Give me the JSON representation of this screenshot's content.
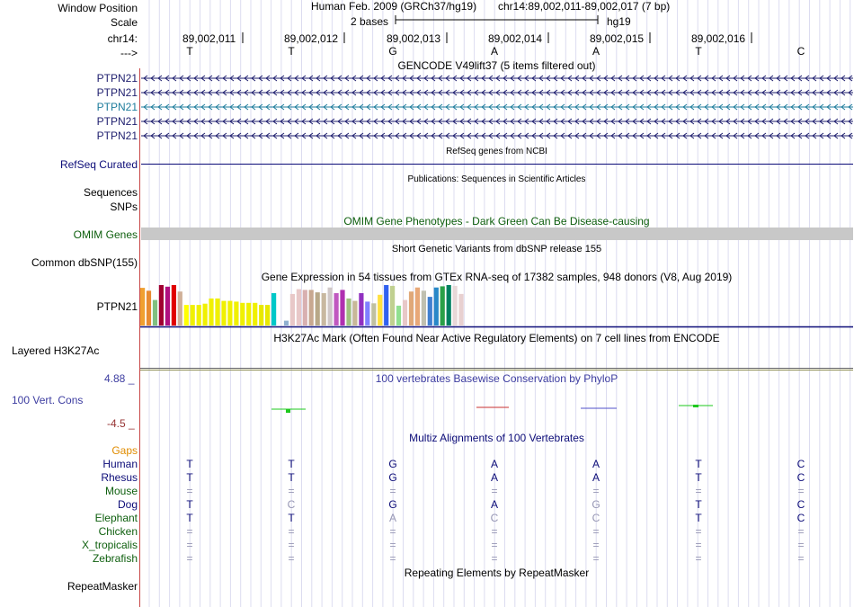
{
  "header": {
    "window_position_label": "Window Position",
    "scale_label": "Scale",
    "chrom_label": "chr14:",
    "arrow_label": "--->",
    "assembly": "Human Feb. 2009 (GRCh37/hg19)",
    "position": "chr14:89,002,011-89,002,017 (7 bp)",
    "scale_text": "2 bases",
    "scale_db": "hg19",
    "positions": [
      "89,002,011",
      "89,002,012",
      "89,002,013",
      "89,002,014",
      "89,002,015",
      "89,002,016"
    ],
    "bases": [
      "T",
      "T",
      "G",
      "A",
      "A",
      "T",
      "C"
    ]
  },
  "gencode": {
    "title": "GENCODE V49lift37 (5 items filtered out)",
    "items": [
      {
        "label": "PTPN21",
        "color": "#1e1e6e"
      },
      {
        "label": "PTPN21",
        "color": "#1e1e6e"
      },
      {
        "label": "PTPN21",
        "color": "#1e7c9c"
      },
      {
        "label": "PTPN21",
        "color": "#1e1e6e"
      },
      {
        "label": "PTPN21",
        "color": "#1e1e6e"
      }
    ]
  },
  "refseq": {
    "title": "RefSeq genes from NCBI",
    "label": "RefSeq Curated",
    "color": "#0c0c78"
  },
  "publications": {
    "title": "Publications: Sequences in Scientific Articles",
    "sequences_label": "Sequences",
    "snps_label": "SNPs"
  },
  "omim": {
    "title": "OMIM Gene Phenotypes - Dark Green Can Be Disease-causing",
    "label": "OMIM Genes",
    "color": "#0e5f0e"
  },
  "dbsnp": {
    "title": "Short Genetic Variants from dbSNP release 155",
    "label": "Common dbSNP(155)"
  },
  "gtex": {
    "title": "Gene Expression in 54 tissues from GTEx RNA-seq of 17382 samples, 948 donors (V8, Aug 2019)",
    "label": "PTPN21",
    "levels": [
      0.93,
      0.86,
      0.63,
      1.0,
      0.96,
      1.0,
      0.84,
      0.51,
      0.51,
      0.51,
      0.54,
      0.67,
      0.67,
      0.61,
      0.61,
      0.59,
      0.56,
      0.56,
      0.56,
      0.51,
      0.51,
      0.8,
      0.0,
      0.12,
      0.78,
      0.9,
      0.88,
      0.88,
      0.82,
      0.8,
      0.94,
      0.8,
      0.88,
      0.67,
      0.61,
      0.8,
      0.59,
      0.55,
      0.76,
      1.0,
      0.98,
      0.49,
      0.63,
      0.84,
      0.94,
      0.86,
      0.71,
      0.94,
      0.97,
      1.0,
      0.98,
      0.78,
      0.0,
      0.0
    ],
    "colors": [
      "#f0a030",
      "#e88a30",
      "#80c080",
      "#a00030",
      "#b01080",
      "#e00000",
      "#d0b098",
      "#ffff00",
      "#f0f000",
      "#f0f000",
      "#f0f000",
      "#f0f000",
      "#f0f000",
      "#f0f000",
      "#f0f000",
      "#f0f000",
      "#f0f000",
      "#f0f000",
      "#f0f000",
      "#e8e800",
      "#e8e800",
      "#00c8c8",
      "#c0c0c0",
      "#90b0d0",
      "#e8c8c8",
      "#e8c8c8",
      "#d8b0b0",
      "#c8a890",
      "#b8a888",
      "#c8b8a0",
      "#d0c8c8",
      "#c058c0",
      "#b030b0",
      "#a0c080",
      "#c8b898",
      "#9030c0",
      "#8080ff",
      "#c0c0a0",
      "#ffe040",
      "#3060f0",
      "#c0d090",
      "#90e090",
      "#e8c8c8",
      "#e0a878",
      "#e8a878",
      "#c0c0b0",
      "#4080d0",
      "#2888c8",
      "#2aa048",
      "#008060",
      "#e8d8d8",
      "#e8d0d0",
      "#ffffff",
      "#ffffff"
    ]
  },
  "h3k27ac": {
    "title": "H3K27Ac Mark (Often Found Near Active Regulatory Elements) on 7 cell lines from ENCODE",
    "label": "Layered H3K27Ac"
  },
  "phylop": {
    "title": "100 vertebrates Basewise Conservation by PhyloP",
    "label": "100 Vert. Cons",
    "max_label": "4.88 _",
    "min_label": "-4.5 _",
    "title_color": "#3c3ca0",
    "pos_color": "#1ec81e",
    "neg_color": "#c83232"
  },
  "multiz": {
    "title": "Multiz Alignments of 100 Vertebrates",
    "gaps_label": "Gaps",
    "species": [
      {
        "name": "Human",
        "color": "#0c0c78",
        "bases": [
          "T",
          "T",
          "G",
          "A",
          "A",
          "T",
          "C"
        ]
      },
      {
        "name": "Rhesus",
        "color": "#0c0c78",
        "bases": [
          "T",
          "T",
          "G",
          "A",
          "A",
          "T",
          "C"
        ]
      },
      {
        "name": "Mouse",
        "color": "#0e5f0e",
        "bases": [
          "=",
          "=",
          "=",
          "=",
          "=",
          "=",
          "="
        ]
      },
      {
        "name": "Dog",
        "color": "#0c0c78",
        "bases": [
          "T",
          "C",
          "G",
          "A",
          "G",
          "T",
          "C"
        ]
      },
      {
        "name": "Elephant",
        "color": "#0e5f0e",
        "bases": [
          "T",
          "T",
          "A",
          "C",
          "C",
          "T",
          "C"
        ]
      },
      {
        "name": "Chicken",
        "color": "#0e5f0e",
        "bases": [
          "=",
          "=",
          "=",
          "=",
          "=",
          "=",
          "="
        ]
      },
      {
        "name": "X_tropicalis",
        "color": "#0e5f0e",
        "bases": [
          "=",
          "=",
          "=",
          "=",
          "=",
          "=",
          "="
        ]
      },
      {
        "name": "Zebrafish",
        "color": "#0e5f0e",
        "bases": [
          "=",
          "=",
          "=",
          "=",
          "=",
          "=",
          "="
        ]
      }
    ],
    "mismatch_color": "#9696b4",
    "gaps_color": "#e08c00"
  },
  "repeatmasker": {
    "title": "Repeating Elements by RepeatMasker",
    "label": "RepeatMasker"
  }
}
